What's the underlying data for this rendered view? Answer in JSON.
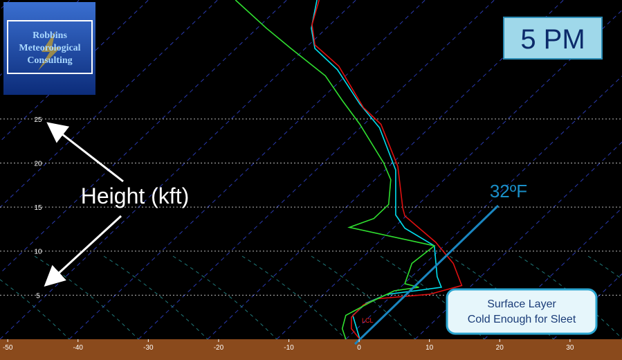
{
  "chart_data": {
    "type": "line",
    "logo": [
      "Robbins",
      "Meteorological",
      "Consulting"
    ],
    "time_label": "5 PM",
    "axis_label": "Height (kft)",
    "annotations": [
      "32ºF",
      "Surface Layer",
      "Cold Enough for Sleet",
      "LCL"
    ],
    "xlim": [
      -51.1,
      37.4
    ],
    "ylim": [
      0,
      38.5
    ],
    "xticks": [
      -50,
      -40,
      -30,
      -20,
      -10,
      0,
      10,
      20,
      30
    ],
    "yticks": [
      5,
      10,
      15,
      20,
      25
    ],
    "grid": true,
    "series": [
      {
        "color": "#00e0f0",
        "x": [
          -6.0,
          -6.8,
          -6.3,
          -3.1,
          0.1,
          2.9,
          5.2,
          5.2,
          6.5,
          10.7,
          11.1,
          11.7,
          8.0,
          4.0,
          1.0,
          -0.9,
          0.1
        ],
        "y": [
          38.5,
          35.3,
          33.0,
          30.6,
          26.7,
          24.0,
          19.2,
          14.1,
          12.6,
          10.6,
          7.1,
          5.9,
          5.5,
          5.1,
          4.1,
          2.7,
          0
        ]
      },
      {
        "color": "#e01010",
        "x": [
          -5.7,
          -6.7,
          -6.3,
          -2.9,
          0.6,
          3.1,
          5.5,
          6.2,
          6.5,
          10.9,
          13.4,
          14.6,
          10.0,
          2.6,
          0.6,
          -1.1,
          -1.1,
          0.1
        ],
        "y": [
          38.5,
          35.7,
          33.4,
          31.0,
          26.3,
          24.4,
          19.6,
          14.9,
          14.0,
          11.0,
          8.6,
          6.1,
          5.1,
          4.6,
          3.9,
          2.5,
          1.2,
          0
        ]
      },
      {
        "color": "#30e030",
        "x": [
          -17.6,
          -13.2,
          -9.7,
          -4.8,
          -2.4,
          0.1,
          3.5,
          4.5,
          4.2,
          2.1,
          -1.4,
          10.7,
          7.5,
          6.5,
          8.5,
          5.0,
          1.6,
          -1.9,
          -2.4,
          -1.9
        ],
        "y": [
          38.5,
          35.3,
          33.0,
          29.9,
          27.1,
          24.4,
          20.0,
          18.1,
          15.3,
          13.7,
          12.7,
          10.6,
          8.6,
          6.3,
          5.9,
          5.5,
          4.2,
          2.7,
          1.2,
          0
        ]
      }
    ]
  }
}
